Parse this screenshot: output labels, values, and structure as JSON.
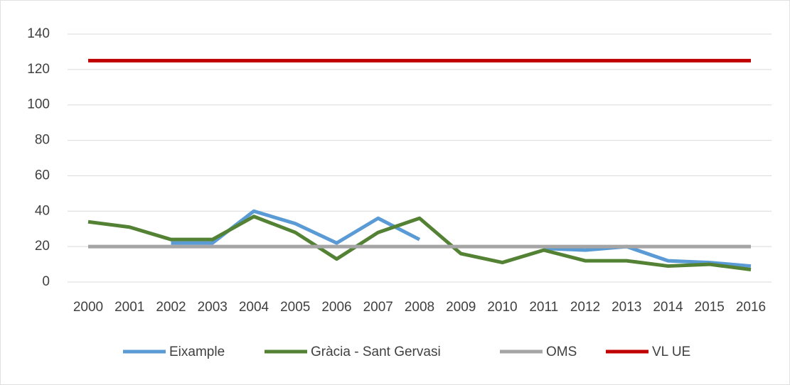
{
  "chart_data": {
    "type": "line",
    "categories": [
      "2000",
      "2001",
      "2002",
      "2003",
      "2004",
      "2005",
      "2006",
      "2007",
      "2008",
      "2009",
      "2010",
      "2011",
      "2012",
      "2013",
      "2014",
      "2015",
      "2016"
    ],
    "series": [
      {
        "name": "Eixample",
        "color": "#5b9bd5",
        "values": [
          null,
          null,
          22,
          22,
          40,
          33,
          22,
          36,
          24,
          null,
          null,
          19,
          18,
          20,
          12,
          11,
          9
        ]
      },
      {
        "name": "Gràcia - Sant Gervasi",
        "color": "#548235",
        "values": [
          34,
          31,
          24,
          24,
          37,
          28,
          13,
          28,
          36,
          16,
          11,
          18,
          12,
          12,
          9,
          10,
          7
        ]
      },
      {
        "name": "OMS",
        "color": "#a5a5a5",
        "values": [
          20,
          20,
          20,
          20,
          20,
          20,
          20,
          20,
          20,
          20,
          20,
          20,
          20,
          20,
          20,
          20,
          20
        ]
      },
      {
        "name": "VL UE",
        "color": "#c00000",
        "values": [
          125,
          125,
          125,
          125,
          125,
          125,
          125,
          125,
          125,
          125,
          125,
          125,
          125,
          125,
          125,
          125,
          125
        ]
      }
    ],
    "ylim": [
      0,
      140
    ],
    "yticks": [
      0,
      20,
      40,
      60,
      80,
      100,
      120,
      140
    ],
    "grid": true,
    "legend": "bottom"
  }
}
